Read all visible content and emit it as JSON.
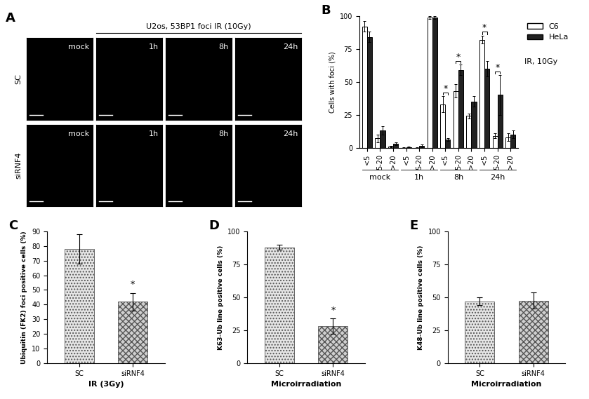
{
  "image_panel": {
    "panel_label": "A",
    "title": "U2os, 53BP1 foci IR (10Gy)",
    "rows": [
      "SC",
      "siRNF4"
    ],
    "columns": [
      "mock",
      "1h",
      "8h",
      "24h"
    ]
  },
  "chart_data": [
    {
      "type": "grouped_bar",
      "panel_label": "B",
      "y_label": "Cells with foci (%)",
      "categories": [
        "<5",
        "5-20",
        ">20",
        "<5",
        "5-20",
        ">20",
        "<5",
        "5-20",
        ">20",
        "<5",
        "5-20",
        ">20"
      ],
      "groups": [
        "mock",
        "1h",
        "8h",
        "24h"
      ],
      "series": [
        {
          "name": "C6",
          "color": "#ffffff",
          "values": [
            92,
            7,
            1,
            0,
            0,
            99,
            33,
            43,
            24,
            82,
            9,
            8
          ],
          "errors": [
            4,
            3,
            0.5,
            0.3,
            0.3,
            1,
            6,
            5,
            2,
            3,
            2,
            3
          ]
        },
        {
          "name": "HeLa",
          "color": "#222222",
          "values": [
            84,
            13,
            3,
            0.5,
            1.5,
            99,
            6,
            59,
            35,
            60,
            40,
            10
          ],
          "errors": [
            4,
            3,
            1,
            0.5,
            1,
            1,
            1,
            4,
            4,
            6,
            15,
            3
          ]
        }
      ],
      "annotations": [
        {
          "text": "IR, 10Gy"
        }
      ],
      "significance": [
        {
          "text": "*",
          "category_index": 6
        },
        {
          "text": "*",
          "category_index": 7
        },
        {
          "text": "*",
          "category_index": 9
        },
        {
          "text": "*",
          "category_index": 10
        }
      ],
      "ylim": [
        0,
        100
      ],
      "yticks": [
        0,
        25,
        50,
        75,
        100
      ],
      "legend": "upper left"
    },
    {
      "type": "bar",
      "panel_label": "C",
      "y_label": "Ubiquitin (FK2) foci positive cells (%)",
      "x_label": "IR (3Gy)",
      "categories": [
        "SC",
        "siRNF4"
      ],
      "values": [
        78,
        42
      ],
      "errors": [
        10,
        6
      ],
      "colors": [
        "#e6e6e6",
        "#cfcfcf"
      ],
      "significance": [
        {
          "text": "*",
          "category_index": 1
        }
      ],
      "ylim": [
        0,
        90
      ],
      "yticks": [
        0,
        10,
        20,
        30,
        40,
        50,
        60,
        70,
        80,
        90
      ]
    },
    {
      "type": "bar",
      "panel_label": "D",
      "y_label": "K63-Ub line positive cells (%)",
      "x_label": "Microirradiation",
      "categories": [
        "SC",
        "siRNF4"
      ],
      "values": [
        88,
        28
      ],
      "errors": [
        2,
        6
      ],
      "colors": [
        "#e6e6e6",
        "#cfcfcf"
      ],
      "significance": [
        {
          "text": "*",
          "category_index": 1
        }
      ],
      "ylim": [
        0,
        100
      ],
      "yticks": [
        0,
        25,
        50,
        75,
        100
      ]
    },
    {
      "type": "bar",
      "panel_label": "E",
      "y_label": "K48-Ub line positive cells (%)",
      "x_label": "Microirradiation",
      "categories": [
        "SC",
        "siRNF4"
      ],
      "values": [
        47,
        47.5
      ],
      "errors": [
        3,
        6
      ],
      "colors": [
        "#e6e6e6",
        "#cfcfcf"
      ],
      "significance": [],
      "ylim": [
        0,
        100
      ],
      "yticks": [
        0,
        25,
        50,
        75,
        100
      ]
    }
  ]
}
